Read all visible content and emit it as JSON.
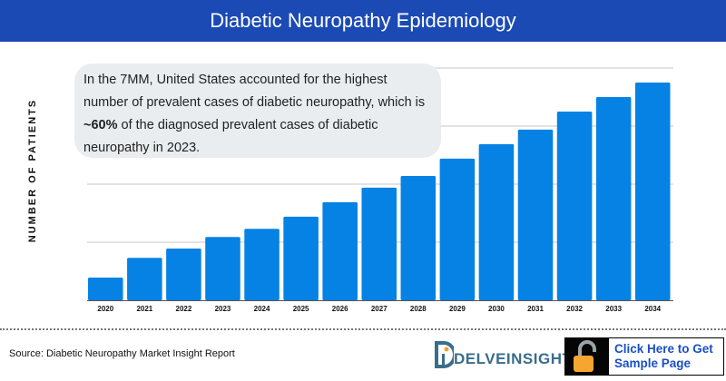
{
  "header": {
    "title": "Diabetic Neuropathy Epidemiology"
  },
  "callout": {
    "text_before": "In the 7MM, United States accounted for the highest number of prevalent cases of diabetic neuropathy, which is ",
    "text_bold": "~60%",
    "text_after": " of the diagnosed prevalent cases of diabetic neuropathy in 2023."
  },
  "footer": {
    "source": "Source: Diabetic Neuropathy Market Insight Report",
    "logo": "DELVEINSIGHT",
    "cta": "Click Here to Get Sample Page"
  },
  "colors": {
    "header": "#1b4ab5",
    "bar": "#0682e4",
    "callout_bg": "#e9edf0",
    "cta_text": "#1a4fc4",
    "lock": "#f6a531"
  },
  "chart_data": {
    "type": "bar",
    "title": "Diabetic Neuropathy Epidemiology",
    "xlabel": "",
    "ylabel": "NUMBER OF PATIENTS",
    "categories": [
      "2020",
      "2021",
      "2022",
      "2023",
      "2024",
      "2025",
      "2026",
      "2027",
      "2028",
      "2029",
      "2030",
      "2031",
      "2032",
      "2033",
      "2034"
    ],
    "values": [
      0.39,
      0.73,
      0.89,
      1.09,
      1.23,
      1.44,
      1.69,
      1.94,
      2.14,
      2.44,
      2.69,
      2.94,
      3.25,
      3.5,
      3.75
    ],
    "value_note": "relative to unlabeled gridlines (no y tick labels shown)",
    "ylim": [
      0,
      4
    ],
    "grid": true,
    "legend": "none"
  }
}
